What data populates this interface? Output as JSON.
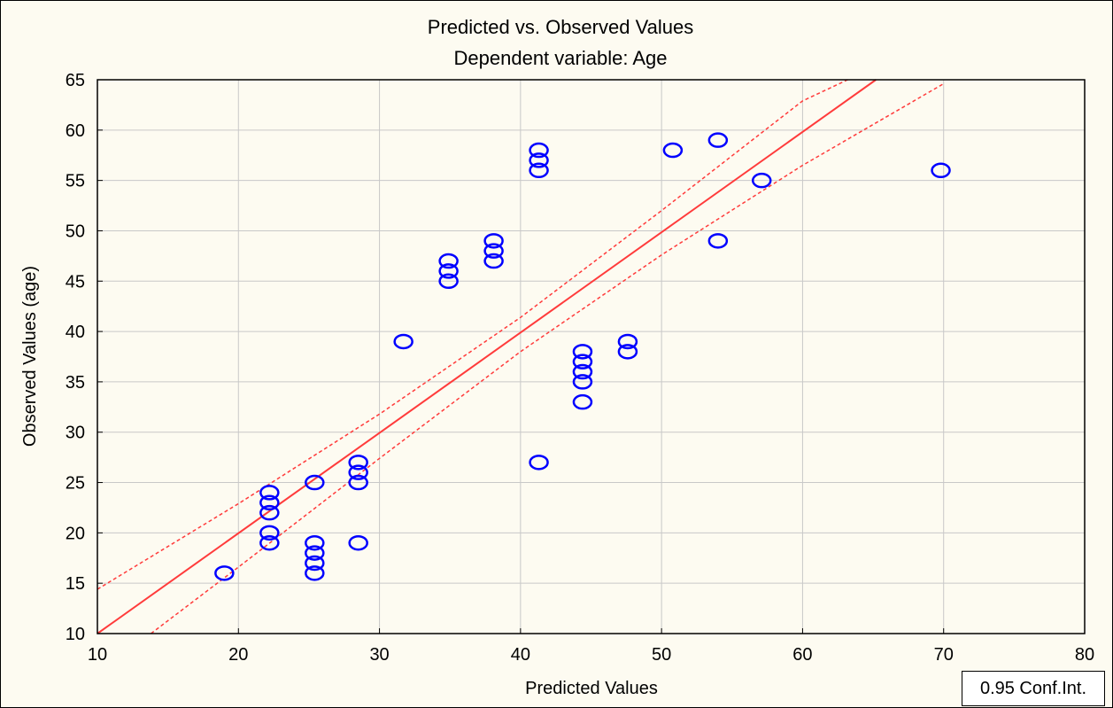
{
  "chart_data": {
    "type": "scatter",
    "title": "Predicted vs. Observed Values",
    "subtitle": "Dependent variable: Age",
    "xlabel": "Predicted Values",
    "ylabel": "Observed Values (age)",
    "xlim": [
      10,
      80
    ],
    "ylim": [
      10,
      65
    ],
    "xticks": [
      10,
      20,
      30,
      40,
      50,
      60,
      70,
      80
    ],
    "yticks": [
      10,
      15,
      20,
      25,
      30,
      35,
      40,
      45,
      50,
      55,
      60,
      65
    ],
    "grid": true,
    "legend": {
      "label": "0.95 Conf.Int.",
      "placement": "bottom-right"
    },
    "colors": {
      "points": "#0000ff",
      "fit": "#ff3b3b",
      "ci": "#ff3b3b",
      "grid": "#c8c8c8"
    },
    "fit_line": {
      "start": [
        10,
        10
      ],
      "end": [
        65.2,
        65
      ]
    },
    "conf_upper": [
      [
        10,
        14.4
      ],
      [
        20,
        22.9
      ],
      [
        30,
        31.8
      ],
      [
        40,
        41.4
      ],
      [
        50,
        52.0
      ],
      [
        60,
        62.9
      ],
      [
        63.2,
        65
      ]
    ],
    "conf_lower": [
      [
        13.8,
        10
      ],
      [
        20,
        16.6
      ],
      [
        30,
        27.4
      ],
      [
        40,
        38.0
      ],
      [
        50,
        47.6
      ],
      [
        60,
        56.5
      ],
      [
        70,
        64.6
      ]
    ],
    "points": [
      {
        "x": 19,
        "y": 16
      },
      {
        "x": 22.2,
        "y": 19
      },
      {
        "x": 22.2,
        "y": 20
      },
      {
        "x": 22.2,
        "y": 22
      },
      {
        "x": 22.2,
        "y": 23
      },
      {
        "x": 22.2,
        "y": 24
      },
      {
        "x": 25.4,
        "y": 16
      },
      {
        "x": 25.4,
        "y": 17
      },
      {
        "x": 25.4,
        "y": 18
      },
      {
        "x": 25.4,
        "y": 19
      },
      {
        "x": 25.4,
        "y": 25
      },
      {
        "x": 28.5,
        "y": 19
      },
      {
        "x": 28.5,
        "y": 25
      },
      {
        "x": 28.5,
        "y": 26
      },
      {
        "x": 28.5,
        "y": 27
      },
      {
        "x": 31.7,
        "y": 39
      },
      {
        "x": 34.9,
        "y": 45
      },
      {
        "x": 34.9,
        "y": 46
      },
      {
        "x": 34.9,
        "y": 47
      },
      {
        "x": 38.1,
        "y": 47
      },
      {
        "x": 38.1,
        "y": 48
      },
      {
        "x": 38.1,
        "y": 49
      },
      {
        "x": 41.3,
        "y": 27
      },
      {
        "x": 41.3,
        "y": 56
      },
      {
        "x": 41.3,
        "y": 57
      },
      {
        "x": 41.3,
        "y": 58
      },
      {
        "x": 44.4,
        "y": 33
      },
      {
        "x": 44.4,
        "y": 35
      },
      {
        "x": 44.4,
        "y": 36
      },
      {
        "x": 44.4,
        "y": 37
      },
      {
        "x": 44.4,
        "y": 38
      },
      {
        "x": 47.6,
        "y": 38
      },
      {
        "x": 47.6,
        "y": 39
      },
      {
        "x": 50.8,
        "y": 58
      },
      {
        "x": 54,
        "y": 49
      },
      {
        "x": 54,
        "y": 59
      },
      {
        "x": 57.1,
        "y": 55
      },
      {
        "x": 69.8,
        "y": 56
      }
    ]
  }
}
